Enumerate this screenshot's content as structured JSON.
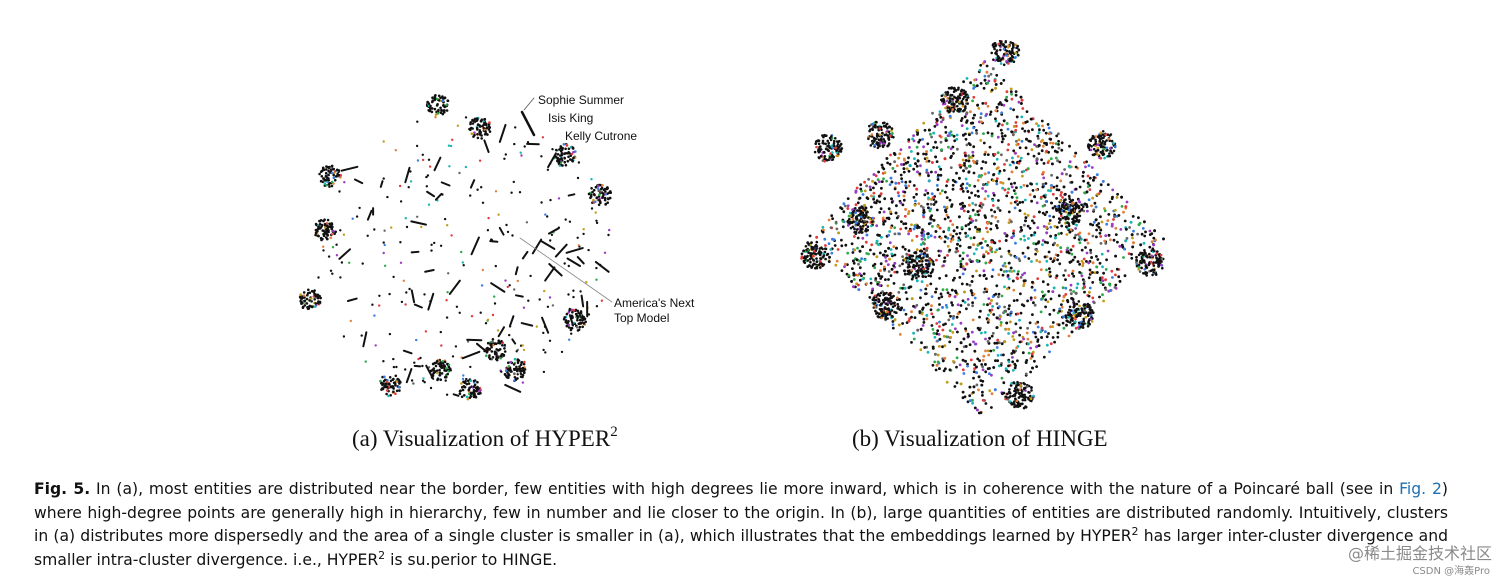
{
  "figure": {
    "panels": [
      {
        "id": "a",
        "subcaption_prefix": "(a) Visualization of HYPER",
        "subcaption_sup": "2",
        "annotations": [
          "Sophie Summer",
          "Isis King",
          "Kelly Cutrone",
          "America's Next",
          "Top Model"
        ]
      },
      {
        "id": "b",
        "subcaption": "(b) Visualization of HINGE"
      }
    ],
    "caption": {
      "label": "Fig. 5.",
      "part1": "In (a), most entities are distributed near the border, few entities with high degrees lie more inward, which is in coherence with the nature of a Poincaré ball (see in",
      "link": "Fig. 2",
      "part2": ") where high-degree points are generally high in hierarchy, few in number and lie closer to the origin. In (b), large quantities of entities are distributed randomly. Intuitively, clusters in (a) distributes more dispersedly and the area of a single cluster is smaller in (a), which illustrates that the embeddings learned by HYPER",
      "sup1": "2",
      "part3": " has larger inter-cluster divergence and smaller intra-cluster divergence. i.e., HYPER",
      "sup2": "2",
      "part4": " is su.perior to HINGE."
    }
  },
  "watermark": {
    "text": "@稀土掘金技术社区",
    "sub": "CSDN @海轰Pro"
  },
  "colors": {
    "point_dark": "#111111",
    "point_palette": [
      "#e23b3b",
      "#3b7de2",
      "#2ea84a",
      "#c49b1c",
      "#9b3bc4",
      "#1cb5b5",
      "#e2813b",
      "#666666"
    ]
  }
}
